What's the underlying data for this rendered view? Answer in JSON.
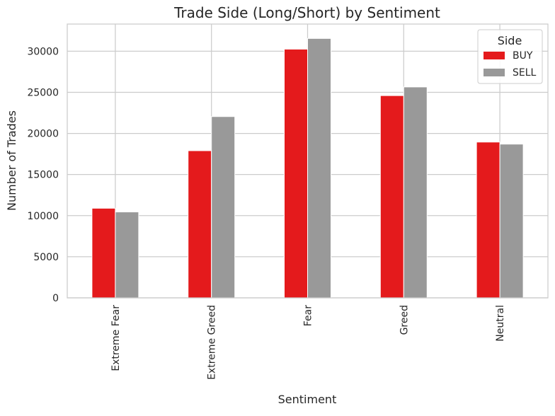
{
  "chart_data": {
    "type": "bar",
    "title": "Trade Side (Long/Short) by Sentiment",
    "xlabel": "Sentiment",
    "ylabel": "Number of Trades",
    "categories": [
      "Extreme Fear",
      "Extreme Greed",
      "Fear",
      "Greed",
      "Neutral"
    ],
    "series": [
      {
        "name": "BUY",
        "color": "#e41a1c",
        "values": [
          10900,
          17900,
          30250,
          24600,
          18950
        ]
      },
      {
        "name": "SELL",
        "color": "#999999",
        "values": [
          10450,
          22050,
          31550,
          25650,
          18700
        ]
      }
    ],
    "ylim": [
      0,
      33300
    ],
    "yticks": [
      0,
      5000,
      10000,
      15000,
      20000,
      25000,
      30000
    ],
    "legend": {
      "title": "Side",
      "placement": "top-right"
    },
    "grid": true
  }
}
